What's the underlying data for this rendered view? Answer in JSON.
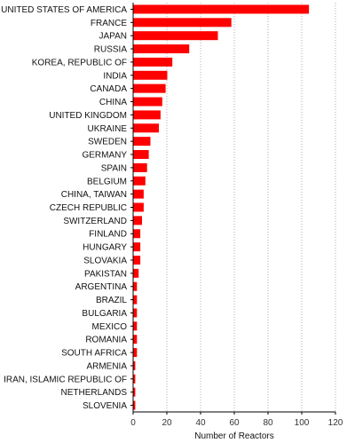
{
  "chart_data": {
    "type": "bar",
    "orientation": "horizontal",
    "xlabel": "Number of Reactors",
    "xlim": [
      0,
      120
    ],
    "xticks": [
      0,
      20,
      40,
      60,
      80,
      100,
      120
    ],
    "grid": true,
    "bar_color": "#ff0000",
    "categories": [
      "UNITED STATES OF AMERICA",
      "FRANCE",
      "JAPAN",
      "RUSSIA",
      "KOREA, REPUBLIC OF",
      "INDIA",
      "CANADA",
      "CHINA",
      "UNITED KINGDOM",
      "UKRAINE",
      "SWEDEN",
      "GERMANY",
      "SPAIN",
      "BELGIUM",
      "CHINA, TAIWAN",
      "CZECH REPUBLIC",
      "SWITZERLAND",
      "FINLAND",
      "HUNGARY",
      "SLOVAKIA",
      "PAKISTAN",
      "ARGENTINA",
      "BRAZIL",
      "BULGARIA",
      "MEXICO",
      "ROMANIA",
      "SOUTH AFRICA",
      "ARMENIA",
      "IRAN, ISLAMIC REPUBLIC OF",
      "NETHERLANDS",
      "SLOVENIA"
    ],
    "values": [
      104,
      58,
      50,
      33,
      23,
      20,
      19,
      17,
      16,
      15,
      10,
      9,
      8,
      7,
      6,
      6,
      5,
      4,
      4,
      4,
      3,
      2,
      2,
      2,
      2,
      2,
      2,
      1,
      1,
      1,
      1
    ]
  }
}
